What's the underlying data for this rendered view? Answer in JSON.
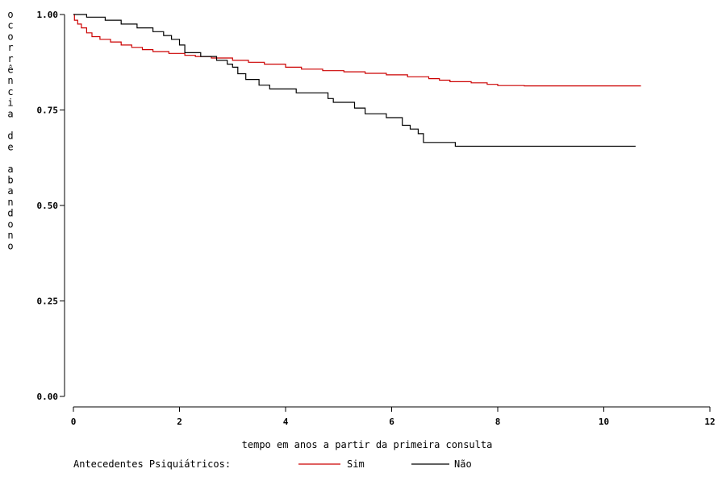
{
  "chart_data": {
    "type": "line",
    "xlabel": "tempo em anos a partir da primeira consulta",
    "ylabel": "ocorrência de abandono",
    "xlim": [
      0,
      12
    ],
    "ylim": [
      0,
      1
    ],
    "x_ticks": [
      "0",
      "2",
      "4",
      "6",
      "8",
      "10",
      "12"
    ],
    "y_ticks": [
      "0.00",
      "0.25",
      "0.50",
      "0.75",
      "1.00"
    ],
    "legend": {
      "title": "Antecedentes Psiquiátricos:",
      "placement": "bottom"
    },
    "step": true,
    "grid": false,
    "series": [
      {
        "name": "Sim",
        "color": "#cc0000",
        "points": [
          [
            0,
            1.0
          ],
          [
            0.02,
            0.985
          ],
          [
            0.08,
            0.975
          ],
          [
            0.15,
            0.965
          ],
          [
            0.25,
            0.952
          ],
          [
            0.35,
            0.942
          ],
          [
            0.5,
            0.935
          ],
          [
            0.7,
            0.928
          ],
          [
            0.9,
            0.92
          ],
          [
            1.1,
            0.914
          ],
          [
            1.3,
            0.908
          ],
          [
            1.5,
            0.903
          ],
          [
            1.8,
            0.898
          ],
          [
            2.1,
            0.893
          ],
          [
            2.3,
            0.89
          ],
          [
            2.6,
            0.886
          ],
          [
            3.0,
            0.88
          ],
          [
            3.3,
            0.875
          ],
          [
            3.6,
            0.87
          ],
          [
            4.0,
            0.862
          ],
          [
            4.3,
            0.857
          ],
          [
            4.7,
            0.853
          ],
          [
            5.1,
            0.85
          ],
          [
            5.5,
            0.846
          ],
          [
            5.9,
            0.842
          ],
          [
            6.3,
            0.837
          ],
          [
            6.7,
            0.832
          ],
          [
            6.9,
            0.828
          ],
          [
            7.1,
            0.824
          ],
          [
            7.5,
            0.821
          ],
          [
            7.8,
            0.817
          ],
          [
            8.0,
            0.814
          ],
          [
            8.5,
            0.813
          ],
          [
            10.7,
            0.813
          ]
        ]
      },
      {
        "name": "Não",
        "color": "#000000",
        "points": [
          [
            0,
            1.0
          ],
          [
            0.25,
            0.993
          ],
          [
            0.6,
            0.985
          ],
          [
            0.9,
            0.975
          ],
          [
            1.2,
            0.965
          ],
          [
            1.5,
            0.955
          ],
          [
            1.7,
            0.945
          ],
          [
            1.85,
            0.935
          ],
          [
            2.0,
            0.92
          ],
          [
            2.1,
            0.9
          ],
          [
            2.4,
            0.89
          ],
          [
            2.7,
            0.88
          ],
          [
            2.9,
            0.87
          ],
          [
            3.0,
            0.862
          ],
          [
            3.1,
            0.845
          ],
          [
            3.25,
            0.83
          ],
          [
            3.5,
            0.815
          ],
          [
            3.7,
            0.805
          ],
          [
            4.2,
            0.795
          ],
          [
            4.8,
            0.78
          ],
          [
            4.9,
            0.77
          ],
          [
            5.3,
            0.755
          ],
          [
            5.5,
            0.74
          ],
          [
            5.9,
            0.73
          ],
          [
            6.2,
            0.71
          ],
          [
            6.35,
            0.7
          ],
          [
            6.5,
            0.688
          ],
          [
            6.6,
            0.665
          ],
          [
            7.2,
            0.655
          ],
          [
            10.6,
            0.655
          ]
        ]
      }
    ]
  }
}
